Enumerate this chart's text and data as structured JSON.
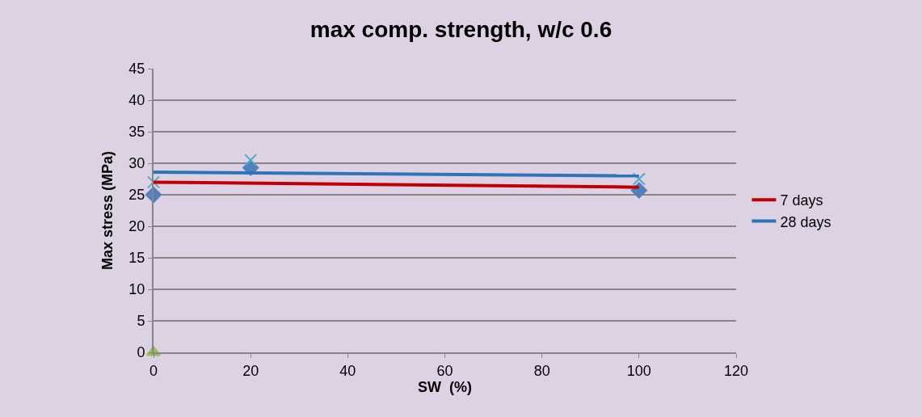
{
  "chart_data": {
    "type": "scatter",
    "title": "max comp. strength, w/c 0.6",
    "xlabel": "SW  (%)",
    "ylabel": "Max stress (MPa)",
    "series": [
      {
        "color": "#4f81bd",
        "x": [
          0,
          20,
          100
        ],
        "values": [
          25.0,
          29.3,
          25.7
        ],
        "marker": "diamond"
      },
      {
        "color": "#4bacc6",
        "x": [
          0,
          20,
          100
        ],
        "values": [
          27.0,
          30.5,
          27.5
        ],
        "marker": "cross"
      },
      {
        "color": "#9bbb59",
        "x": [
          0
        ],
        "values": [
          0
        ],
        "marker": "triangle"
      },
      {
        "type": "line",
        "name": "7 days",
        "color": "#c00000",
        "x": [
          0,
          100
        ],
        "values": [
          27.0,
          26.2
        ],
        "marker": "none"
      },
      {
        "type": "line",
        "name": "28 days",
        "color": "#2e75b6",
        "x": [
          0,
          100
        ],
        "values": [
          28.6,
          28.0
        ],
        "marker": "none"
      }
    ],
    "xlim": [
      0,
      120
    ],
    "xticks": [
      0,
      20,
      40,
      60,
      80,
      100,
      120
    ],
    "ylim": [
      0,
      45
    ],
    "yticks": [
      0,
      5,
      10,
      15,
      20,
      25,
      30,
      35,
      40,
      45
    ],
    "grid": "y",
    "legend": "right"
  }
}
